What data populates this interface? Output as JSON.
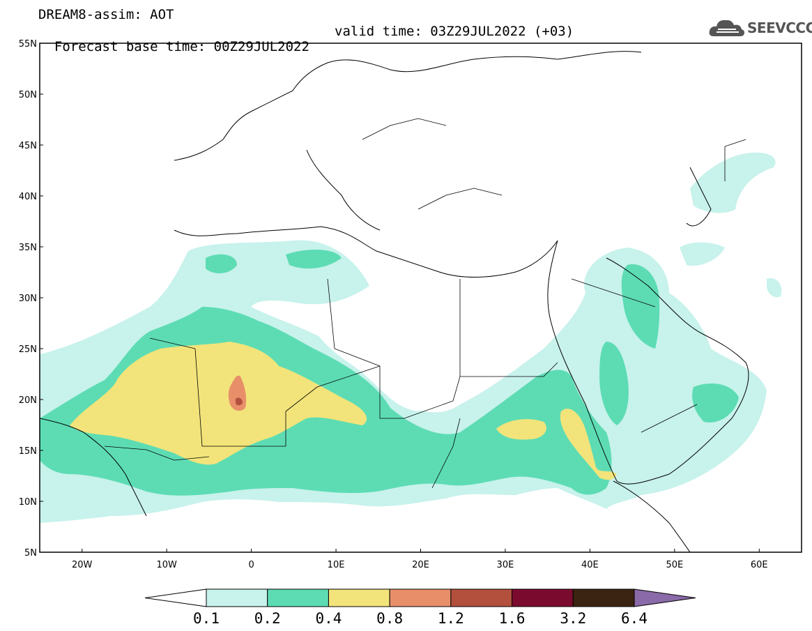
{
  "header": {
    "line1": "DREAM8-assim: AOT",
    "line2_base": "Forecast base time: 00Z29JUL2022",
    "line2_valid": "valid time: 03Z29JUL2022 (+03)"
  },
  "logo": {
    "text": "SEEVCCC",
    "icon": "cloud-icon"
  },
  "map": {
    "lat_labels": [
      "55N",
      "50N",
      "45N",
      "40N",
      "35N",
      "30N",
      "25N",
      "20N",
      "15N",
      "10N",
      "5N"
    ],
    "lon_labels": [
      "20W",
      "10W",
      "0",
      "10E",
      "20E",
      "30E",
      "40E",
      "50E",
      "60E"
    ],
    "lat_range": [
      5,
      55
    ],
    "lon_range": [
      -25,
      65
    ]
  },
  "colorbar": {
    "colors": [
      "#ffffff",
      "#c8f2ec",
      "#5ddcb4",
      "#f2e47a",
      "#e88f6a",
      "#b2503d",
      "#7b0b2e",
      "#3c2412",
      "#8a6aa8"
    ],
    "labels": [
      "0.1",
      "0.2",
      "0.4",
      "0.8",
      "1.2",
      "1.6",
      "3.2",
      "6.4"
    ]
  }
}
